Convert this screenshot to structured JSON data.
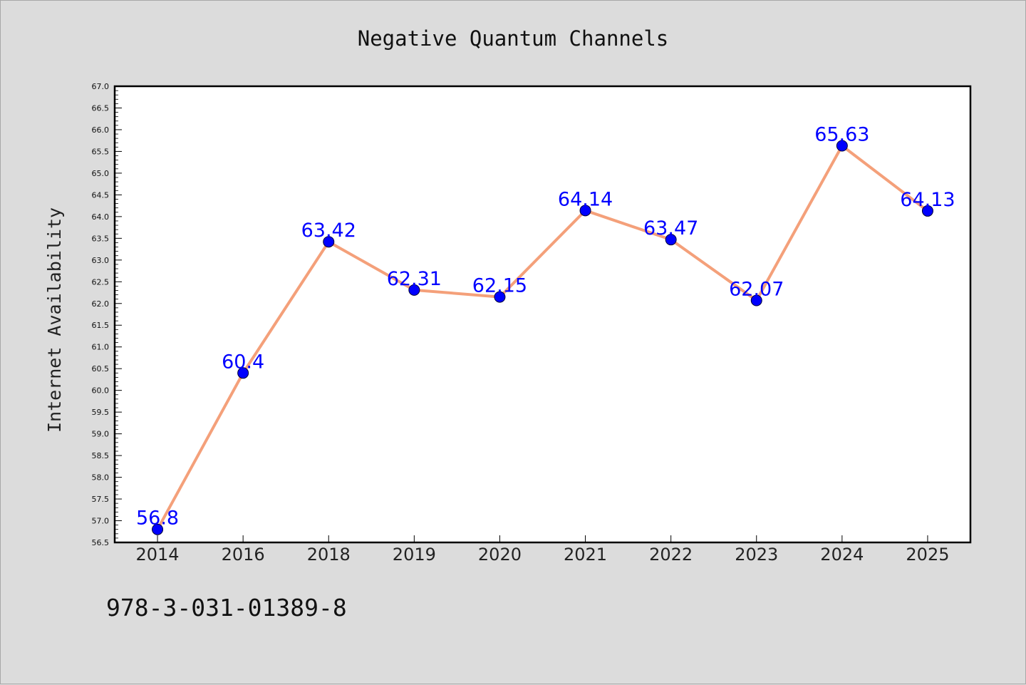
{
  "chart_data": {
    "type": "line",
    "title": "Negative Quantum Channels",
    "ylabel": "Internet Availability",
    "xlabel": "",
    "categories": [
      "2014",
      "2016",
      "2018",
      "2019",
      "2020",
      "2021",
      "2022",
      "2023",
      "2024",
      "2025"
    ],
    "values": [
      56.8,
      60.4,
      63.42,
      62.31,
      62.15,
      64.14,
      63.47,
      62.07,
      65.63,
      64.13
    ],
    "data_labels": [
      "56.8",
      "60.4",
      "63.42",
      "62.31",
      "62.15",
      "64.14",
      "63.47",
      "62.07",
      "65.63",
      "64.13"
    ],
    "ylim": [
      56.5,
      67.0
    ],
    "yticks": [
      "56.5",
      "57.0",
      "57.5",
      "58.0",
      "58.5",
      "59.0",
      "59.5",
      "60.0",
      "60.5",
      "61.0",
      "61.5",
      "62.0",
      "62.5",
      "63.0",
      "63.5",
      "64.0",
      "64.5",
      "65.0",
      "65.5",
      "66.0",
      "66.5",
      "67.0"
    ],
    "grid": false,
    "legend": "none",
    "colors": {
      "line": "#f4a07a",
      "marker_fill": "#0000ff",
      "marker_edge": "#000033",
      "data_label": "#0000ff",
      "plot_background": "#ffffff",
      "figure_background": "#dcdcdc"
    }
  },
  "footer": {
    "identifier": "978-3-031-01389-8"
  }
}
